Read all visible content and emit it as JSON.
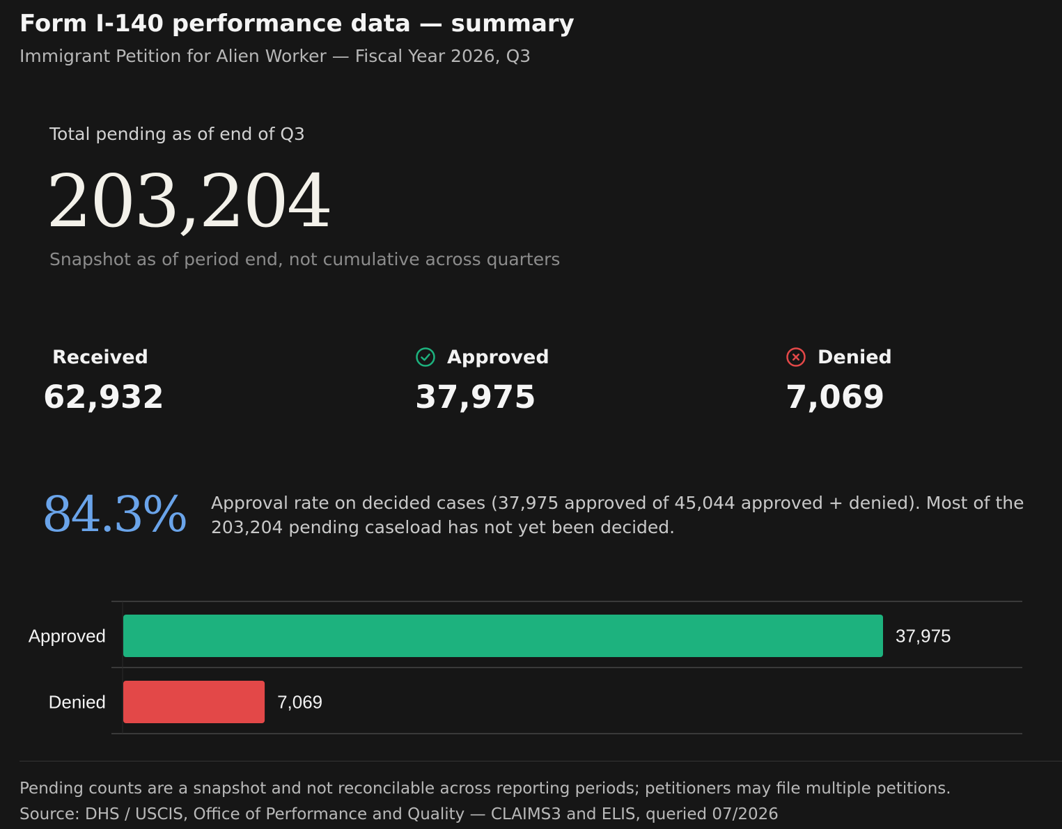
{
  "header": {
    "title": "Form I-140 performance data — summary",
    "subtitle": "Immigrant Petition for Alien Worker — Fiscal Year 2026, Q3"
  },
  "hero": {
    "label": "Total pending as of end of Q3",
    "value": "203,204",
    "note": "Snapshot as of period end, not cumulative across quarters"
  },
  "stats": {
    "received": {
      "label": "Received",
      "value": "62,932"
    },
    "approved": {
      "label": "Approved",
      "value": "37,975",
      "icon": "check-circle-icon"
    },
    "denied": {
      "label": "Denied",
      "value": "7,069",
      "icon": "x-circle-icon"
    }
  },
  "rate": {
    "value": "84.3%",
    "text": "Approval rate on decided cases (37,975 approved of 45,044 approved + denied). Most of the 203,204 pending caseload has not yet been decided."
  },
  "colors": {
    "approved": "#1db27e",
    "denied": "#e34848",
    "accent": "#6aa4ea"
  },
  "chart_data": {
    "type": "bar",
    "orientation": "horizontal",
    "categories": [
      "Approved",
      "Denied"
    ],
    "values": [
      37975,
      7069
    ],
    "value_labels": [
      "37,975",
      "7,069"
    ],
    "colors": [
      "#1db27e",
      "#e34848"
    ],
    "xlim": [
      0,
      45044
    ],
    "grid": true,
    "legend": false
  },
  "footer": {
    "note": "Pending counts are a snapshot and not reconcilable across reporting periods; petitioners may file multiple petitions.",
    "source": "Source: DHS / USCIS, Office of Performance and Quality — CLAIMS3 and ELIS, queried 07/2026"
  }
}
